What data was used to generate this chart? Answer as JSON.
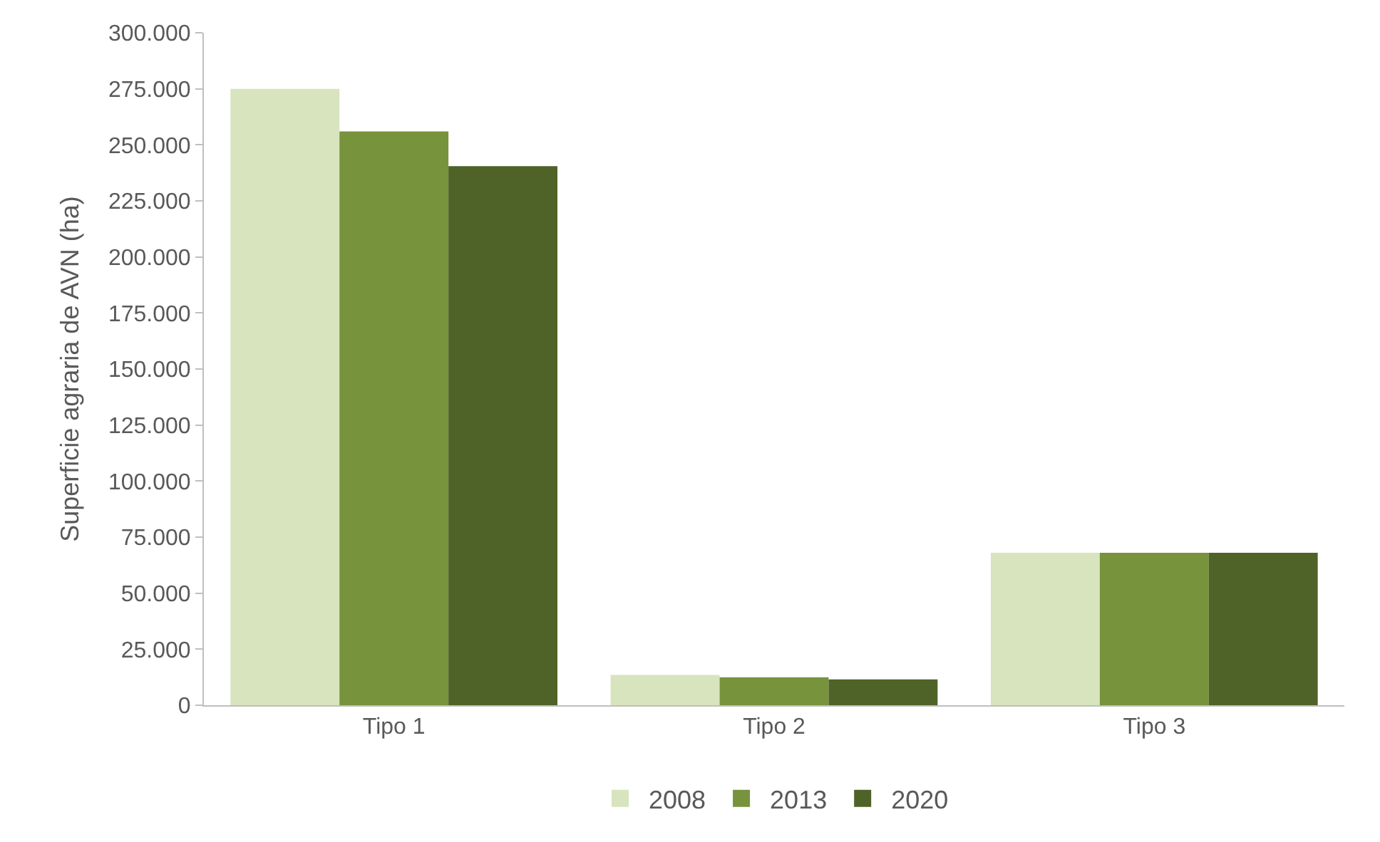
{
  "chart_data": {
    "type": "bar",
    "ylabel": "Superficie agraria de AVN (ha)",
    "categories": [
      "Tipo 1",
      "Tipo 2",
      "Tipo 3"
    ],
    "series": [
      {
        "name": "2008",
        "color": "#d7e4bd",
        "values": [
          275000,
          13500,
          68000
        ]
      },
      {
        "name": "2013",
        "color": "#77933c",
        "values": [
          256000,
          12500,
          68000
        ]
      },
      {
        "name": "2020",
        "color": "#4f6228",
        "values": [
          240500,
          11500,
          68000
        ]
      }
    ],
    "ylim": [
      0,
      300000
    ],
    "yticks": [
      {
        "value": 0,
        "label": "0"
      },
      {
        "value": 25000,
        "label": "25.000"
      },
      {
        "value": 50000,
        "label": "50.000"
      },
      {
        "value": 75000,
        "label": "75.000"
      },
      {
        "value": 100000,
        "label": "100.000"
      },
      {
        "value": 125000,
        "label": "125.000"
      },
      {
        "value": 150000,
        "label": "150.000"
      },
      {
        "value": 175000,
        "label": "175.000"
      },
      {
        "value": 200000,
        "label": "200.000"
      },
      {
        "value": 225000,
        "label": "225.000"
      },
      {
        "value": 250000,
        "label": "250.000"
      },
      {
        "value": 275000,
        "label": "275.000"
      },
      {
        "value": 300000,
        "label": "300.000"
      }
    ],
    "grid": false,
    "legend": "bottom"
  }
}
